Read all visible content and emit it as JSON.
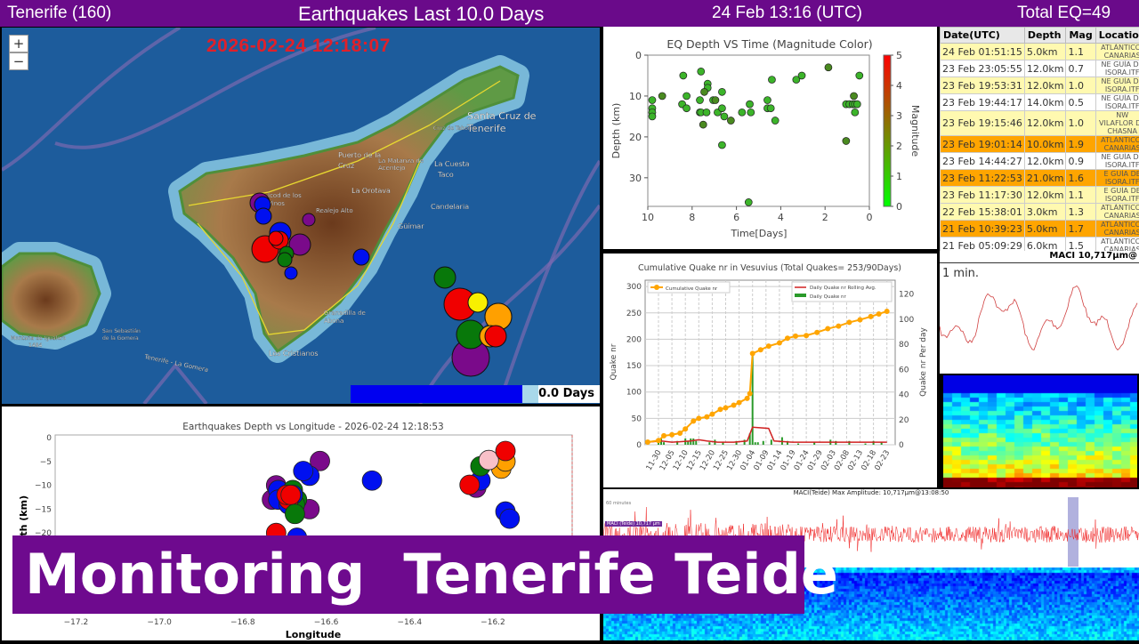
{
  "header": {
    "region": "Tenerife (160)",
    "title": "Earthquakes Last 10.0 Days",
    "datetime": "24 Feb 13:16 (UTC)",
    "total": "Total EQ=49",
    "bg_color": "#6a0a8a"
  },
  "map": {
    "zoom_in": "+",
    "zoom_out": "−",
    "timestamp": "2026-02-24 12:18:07",
    "days_label": "0.0 Days",
    "time_progress_percent": 92,
    "labels": [
      "Santa Cruz de",
      "Tenerife",
      "Puerto de la",
      "Cruz",
      "La Orotava",
      "La Matanza de",
      "Acentejo",
      "La Cuesta",
      "Taco",
      "Candelaria",
      "Güímar",
      "Icod de los",
      "Vinos",
      "Realejo Alto",
      "Cruz de Taborno",
      "Granadilla de",
      "Abona",
      "Los Cristianos",
      "San Sebastián",
      "de la Gomera",
      "Montaña de Igualero",
      "1484",
      "Tenerife - La Gomera"
    ],
    "marker_colors": [
      "purple",
      "blue",
      "red",
      "green",
      "orange",
      "yellow"
    ]
  },
  "depth_time": {
    "title": "EQ Depth VS Time (Magnitude Color)",
    "xlabel": "Time[Days]",
    "ylabel": "Depth (km)",
    "colorbar_label": "Magnitude",
    "xlim": [
      10,
      0
    ],
    "ylim": [
      37,
      0
    ],
    "xticks": [
      "10",
      "8",
      "6",
      "4",
      "2",
      "0"
    ],
    "yticks": [
      "0",
      "10",
      "20",
      "30"
    ],
    "cticks": [
      "0",
      "1",
      "2",
      "3",
      "4",
      "5"
    ],
    "points": [
      [
        9.8,
        11,
        1.1
      ],
      [
        9.8,
        13,
        1.0
      ],
      [
        9.8,
        14,
        1.0
      ],
      [
        9.8,
        15,
        1.1
      ],
      [
        9.35,
        10,
        2.0
      ],
      [
        8.4,
        5,
        1.1
      ],
      [
        8.45,
        12,
        1.2
      ],
      [
        8.25,
        10,
        1.1
      ],
      [
        8.25,
        13,
        1.0
      ],
      [
        7.6,
        4,
        1.2
      ],
      [
        7.65,
        11,
        1.0
      ],
      [
        7.65,
        14,
        1.0
      ],
      [
        7.6,
        14,
        1.1
      ],
      [
        7.3,
        7,
        1.0
      ],
      [
        7.3,
        8,
        1.1
      ],
      [
        7.45,
        9,
        1.5
      ],
      [
        7.35,
        14,
        1.1
      ],
      [
        7.5,
        17,
        1.8
      ],
      [
        7.05,
        11,
        1.2
      ],
      [
        6.95,
        11,
        1.5
      ],
      [
        6.85,
        14,
        1.1
      ],
      [
        6.65,
        9,
        1.0
      ],
      [
        6.65,
        13,
        1.0
      ],
      [
        6.55,
        15,
        1.2
      ],
      [
        6.65,
        22,
        1.2
      ],
      [
        6.25,
        16,
        1.6
      ],
      [
        5.75,
        14,
        1.1
      ],
      [
        5.45,
        36,
        1.0
      ],
      [
        5.4,
        12,
        0.9
      ],
      [
        5.35,
        14,
        1.0
      ],
      [
        4.6,
        11,
        1.0
      ],
      [
        4.6,
        13,
        0.9
      ],
      [
        4.45,
        13,
        1.0
      ],
      [
        4.4,
        6,
        1.3
      ],
      [
        4.25,
        16,
        1.1
      ],
      [
        3.3,
        6,
        1.3
      ],
      [
        3.05,
        5,
        1.3
      ],
      [
        1.85,
        3,
        1.5
      ],
      [
        1.05,
        12,
        0.9
      ],
      [
        1.05,
        21,
        1.6
      ],
      [
        0.9,
        12,
        1.0
      ],
      [
        0.75,
        12,
        1.0
      ],
      [
        0.7,
        10,
        1.9
      ],
      [
        0.65,
        14,
        1.0
      ],
      [
        0.65,
        12,
        0.7
      ],
      [
        0.55,
        12,
        1.1
      ],
      [
        0.45,
        5,
        1.1
      ]
    ]
  },
  "cumulative": {
    "title": "Cumulative Quake nr in Vesuvius (Total Quakes= 253/90Days)",
    "ylabel_left": "Quake nr",
    "ylabel_right": "Quake nr  Per day",
    "legend_left": "Cumulative Quake nr",
    "legend_rolling": "Daily Quake nr Rolling Avg.",
    "legend_daily": "Daily Quake nr",
    "yticks_left": [
      "0",
      "50",
      "100",
      "150",
      "200",
      "250",
      "300"
    ],
    "yticks_right": [
      "0",
      "20",
      "40",
      "60",
      "80",
      "100",
      "120"
    ],
    "xticks": [
      "11-30",
      "12-05",
      "12-10",
      "12-15",
      "12-20",
      "12-25",
      "12-30",
      "01-04",
      "01-09",
      "01-14",
      "01-19",
      "01-24",
      "01-29",
      "02-03",
      "02-08",
      "02-13",
      "02-18",
      "02-23"
    ],
    "ylim_left": [
      0,
      312
    ],
    "ylim_right": [
      0,
      131
    ],
    "cumulative_points": [
      [
        "11-26",
        5
      ],
      [
        "11-30",
        8
      ],
      [
        "12-02",
        17
      ],
      [
        "12-05",
        19
      ],
      [
        "12-08",
        22
      ],
      [
        "12-10",
        30
      ],
      [
        "12-13",
        45
      ],
      [
        "12-15",
        50
      ],
      [
        "12-18",
        53
      ],
      [
        "12-20",
        58
      ],
      [
        "12-23",
        67
      ],
      [
        "12-25",
        70
      ],
      [
        "12-28",
        75
      ],
      [
        "12-30",
        80
      ],
      [
        "01-02",
        88
      ],
      [
        "01-03",
        97
      ],
      [
        "01-04",
        173
      ],
      [
        "01-07",
        180
      ],
      [
        "01-10",
        187
      ],
      [
        "01-14",
        193
      ],
      [
        "01-17",
        202
      ],
      [
        "01-20",
        206
      ],
      [
        "01-24",
        207
      ],
      [
        "01-28",
        213
      ],
      [
        "02-01",
        220
      ],
      [
        "02-05",
        225
      ],
      [
        "02-09",
        232
      ],
      [
        "02-13",
        237
      ],
      [
        "02-17",
        243
      ],
      [
        "02-20",
        248
      ],
      [
        "02-23",
        253
      ]
    ],
    "daily_points": [
      [
        "11-30",
        3
      ],
      [
        "12-01",
        5
      ],
      [
        "12-02",
        2
      ],
      [
        "12-07",
        3
      ],
      [
        "12-10",
        5
      ],
      [
        "12-11",
        3
      ],
      [
        "12-12",
        5
      ],
      [
        "12-13",
        5
      ],
      [
        "12-14",
        3
      ],
      [
        "12-19",
        2
      ],
      [
        "12-21",
        4
      ],
      [
        "12-24",
        2
      ],
      [
        "12-29",
        3
      ],
      [
        "01-01",
        4
      ],
      [
        "01-03",
        9
      ],
      [
        "01-04",
        74
      ],
      [
        "01-05",
        2
      ],
      [
        "01-06",
        2
      ],
      [
        "01-08",
        3
      ],
      [
        "01-11",
        4
      ],
      [
        "01-15",
        6
      ],
      [
        "01-17",
        3
      ],
      [
        "01-21",
        1
      ],
      [
        "01-27",
        2
      ],
      [
        "02-02",
        4
      ],
      [
        "02-04",
        3
      ],
      [
        "02-09",
        3
      ],
      [
        "02-15",
        1
      ],
      [
        "02-18",
        3
      ],
      [
        "02-21",
        2
      ]
    ],
    "rolling_points": [
      [
        "11-26",
        2
      ],
      [
        "12-01",
        3
      ],
      [
        "12-05",
        2
      ],
      [
        "12-12",
        3
      ],
      [
        "12-15",
        4
      ],
      [
        "12-18",
        3
      ],
      [
        "12-22",
        2
      ],
      [
        "12-28",
        2
      ],
      [
        "01-02",
        3
      ],
      [
        "01-04",
        14
      ],
      [
        "01-10",
        13
      ],
      [
        "01-12",
        3
      ],
      [
        "01-19",
        2
      ],
      [
        "01-29",
        2
      ],
      [
        "02-07",
        2
      ],
      [
        "02-15",
        2
      ],
      [
        "02-23",
        2
      ]
    ]
  },
  "depth_lon": {
    "title": "Earthquakes Depth vs Longitude - 2026-02-24 12:18:53",
    "xlabel": "Longitude",
    "ylabel": "Depth (km)",
    "xticks": [
      "−17.2",
      "−17.0",
      "−16.8",
      "−16.6",
      "−16.4",
      "−16.2"
    ],
    "yticks": [
      "0",
      "−5",
      "−10",
      "−15",
      "−20"
    ],
    "xlim": [
      -17.25,
      -16.01
    ],
    "ylim": [
      -37,
      0
    ],
    "points": [
      [
        -16.615,
        -4.9,
        "purple"
      ],
      [
        -16.64,
        -8,
        "blue"
      ],
      [
        -16.655,
        -7,
        "blue"
      ],
      [
        -16.49,
        -9,
        "blue"
      ],
      [
        -16.73,
        -13,
        "purple"
      ],
      [
        -16.72,
        -10,
        "purple"
      ],
      [
        -16.715,
        -11,
        "blue"
      ],
      [
        -16.715,
        -13,
        "blue"
      ],
      [
        -16.64,
        -15,
        "purple"
      ],
      [
        -16.69,
        -14,
        "blue"
      ],
      [
        -16.68,
        -11,
        "green"
      ],
      [
        -16.67,
        -13,
        "green"
      ],
      [
        -16.675,
        -14,
        "green"
      ],
      [
        -16.68,
        -12,
        "blue"
      ],
      [
        -16.69,
        -13,
        "red"
      ],
      [
        -16.695,
        -12,
        "red"
      ],
      [
        -16.685,
        -12,
        "red"
      ],
      [
        -16.675,
        -16,
        "green"
      ],
      [
        -16.72,
        -20,
        "red"
      ],
      [
        -16.67,
        -21,
        "blue"
      ],
      [
        -16.24,
        -10.5,
        "purple"
      ],
      [
        -16.23,
        -9,
        "blue"
      ],
      [
        -16.256,
        -9.9,
        "red"
      ],
      [
        -16.23,
        -6,
        "green"
      ],
      [
        -16.18,
        -6.5,
        "orange"
      ],
      [
        -16.17,
        -5,
        "orange"
      ],
      [
        -16.21,
        -4.7,
        "pink"
      ],
      [
        -16.17,
        -2.8,
        "red"
      ],
      [
        -16.17,
        -15.5,
        "blue"
      ],
      [
        -16.16,
        -17,
        "blue"
      ]
    ]
  },
  "table": {
    "columns": [
      "Date(UTC)",
      "Depth",
      "Mag",
      "Location"
    ],
    "rows": [
      {
        "date": "24 Feb 01:51:15",
        "depth": "5.0km",
        "mag": "1.1",
        "loc": "ATLÁNTICO-CANARIAS",
        "color": "#fff9b0"
      },
      {
        "date": "23 Feb 23:05:55",
        "depth": "12.0km",
        "mag": "0.7",
        "loc": "NE GUÍA DE ISORA.ITF",
        "color": "#ffffff"
      },
      {
        "date": "23 Feb 19:53:31",
        "depth": "12.0km",
        "mag": "1.0",
        "loc": "NE GUÍA DE ISORA.ITF",
        "color": "#fff9b0"
      },
      {
        "date": "23 Feb 19:44:17",
        "depth": "14.0km",
        "mag": "0.5",
        "loc": "NE GUÍA DE ISORA.ITF",
        "color": "#ffffff"
      },
      {
        "date": "23 Feb 19:15:46",
        "depth": "12.0km",
        "mag": "1.0",
        "loc": "NW VILAFLOR DE CHASNA",
        "color": "#fff9b0"
      },
      {
        "date": "23 Feb 19:01:14",
        "depth": "10.0km",
        "mag": "1.9",
        "loc": "ATLÁNTICO-CANARIAS",
        "color": "#ffa500"
      },
      {
        "date": "23 Feb 14:44:27",
        "depth": "12.0km",
        "mag": "0.9",
        "loc": "NE GUÍA DE ISORA.ITF",
        "color": "#ffffff"
      },
      {
        "date": "23 Feb 11:22:53",
        "depth": "21.0km",
        "mag": "1.6",
        "loc": "E GUÍA DE ISORA.ITF",
        "color": "#ffa500"
      },
      {
        "date": "23 Feb 11:17:30",
        "depth": "12.0km",
        "mag": "1.1",
        "loc": "E GUÍA DE ISORA.ITF",
        "color": "#fff9b0"
      },
      {
        "date": "22 Feb 15:38:01",
        "depth": "3.0km",
        "mag": "1.3",
        "loc": "ATLÁNTICO-CANARIAS",
        "color": "#fff9b0"
      },
      {
        "date": "21 Feb 10:39:23",
        "depth": "5.0km",
        "mag": "1.7",
        "loc": "ATLÁNTICO-CANARIAS",
        "color": "#ffa500"
      },
      {
        "date": "21 Feb 05:09:29",
        "depth": "6.0km",
        "mag": "1.5",
        "loc": "ATLÁNTICO-CANARIAS",
        "color": "#ffffff"
      }
    ]
  },
  "maci_small": {
    "title": "MACI 10,717µm@",
    "window_label": "1 min."
  },
  "maci_long": {
    "title": "MACI(Teide) Max Amplitude: 10,717µm@13:08:50",
    "window_label": "60 minutes",
    "tag": "MACI (Teide) 10,717 µm"
  },
  "banner": {
    "text": "Monitoring  Tenerife Teide",
    "bg_color": "#6e0a8e"
  }
}
